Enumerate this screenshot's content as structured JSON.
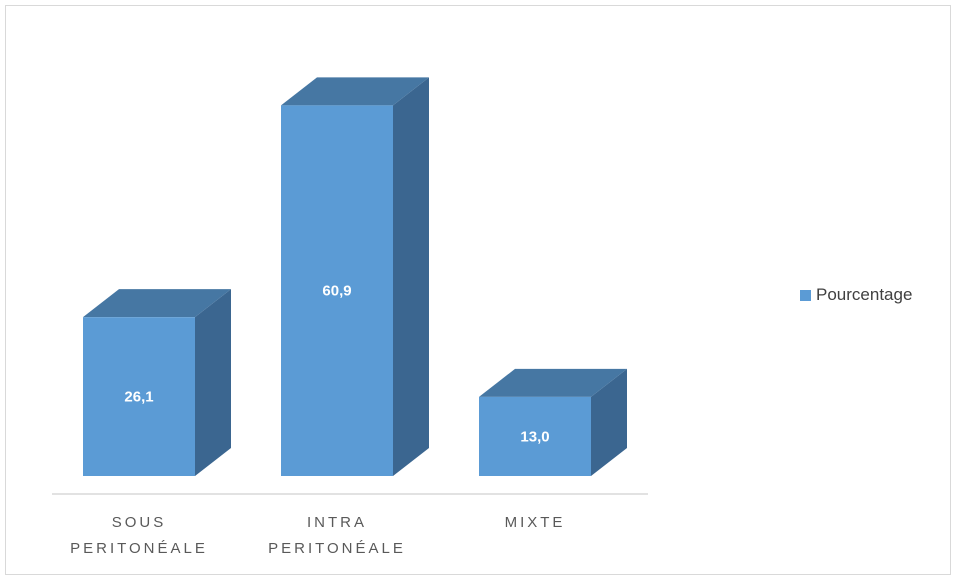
{
  "chart_data": {
    "type": "bar",
    "three_d": true,
    "categories": [
      [
        "SOUS",
        "PERITONÉALE"
      ],
      [
        "INTRA",
        "PERITONÉALE"
      ],
      [
        "MIXTE"
      ]
    ],
    "series": [
      {
        "name": "Pourcentage",
        "values": [
          26.1,
          60.9,
          13.0
        ],
        "labels": [
          "26,1",
          "60,9",
          "13,0"
        ]
      }
    ],
    "title": "",
    "xlabel": "",
    "ylabel": "",
    "ylim": [
      0,
      70
    ],
    "grid": false,
    "legend_position": "right",
    "colors": {
      "front": "#5b9bd5",
      "top": "#4677a3",
      "side": "#3b6690",
      "axis": "#d9d9d9"
    }
  }
}
